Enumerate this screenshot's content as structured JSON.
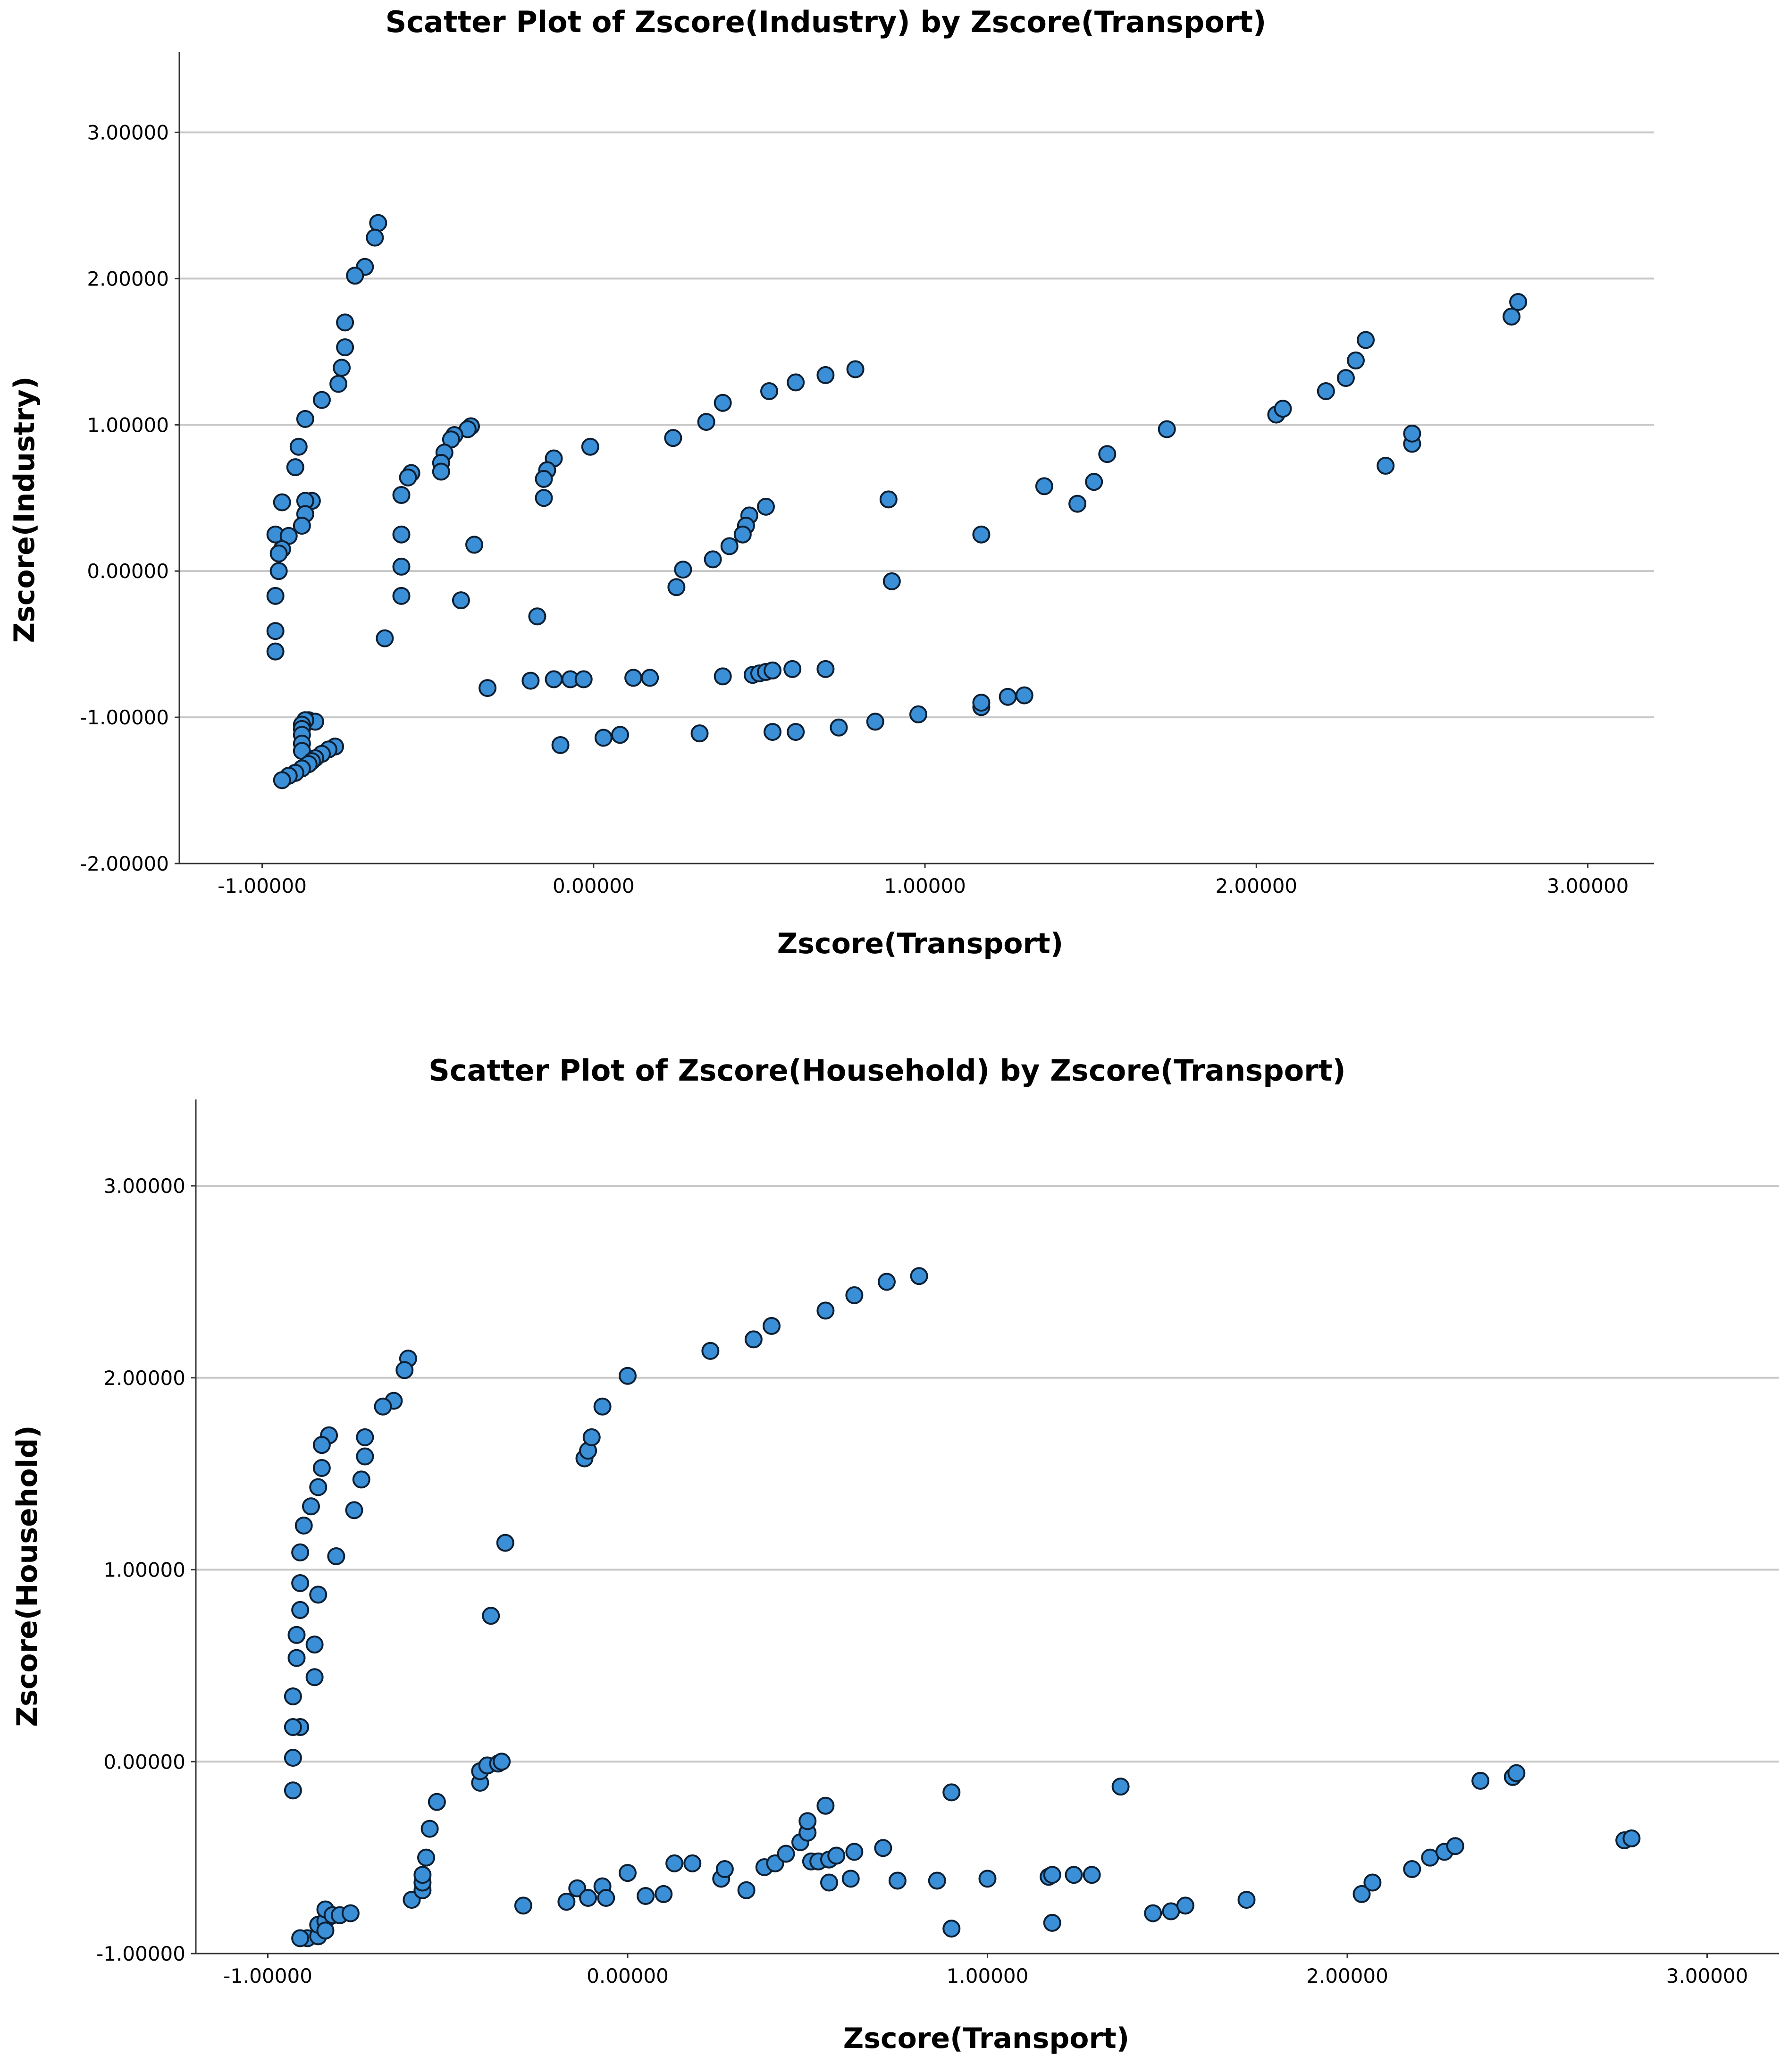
{
  "colors": {
    "point_fill": "#3a8fd6",
    "point_stroke": "#0d1f33",
    "grid": "#c8c8c8"
  },
  "chart_data": [
    {
      "type": "scatter",
      "title": "Scatter Plot of Zscore(Industry) by Zscore(Transport)",
      "xlabel": "Zscore(Transport)",
      "ylabel": "Zscore(Industry)",
      "xlim": [
        -1.25,
        3.2
      ],
      "ylim": [
        -2.0,
        3.55
      ],
      "xticks": [
        -1,
        0,
        1,
        2,
        3
      ],
      "xtick_labels": [
        "-1.00000",
        "0.00000",
        "1.00000",
        "2.00000",
        "3.00000"
      ],
      "yticks": [
        -2,
        -1,
        0,
        1,
        2,
        3
      ],
      "ytick_labels": [
        "-2.00000",
        "-1.00000",
        "0.00000",
        "1.00000",
        "2.00000",
        "3.00000"
      ],
      "grid_y": [
        -1,
        0,
        1,
        2,
        3
      ],
      "points": [
        [
          -0.65,
          2.38
        ],
        [
          -0.66,
          2.28
        ],
        [
          -0.69,
          2.08
        ],
        [
          -0.72,
          2.02
        ],
        [
          -0.75,
          1.7
        ],
        [
          -0.75,
          1.53
        ],
        [
          -0.76,
          1.39
        ],
        [
          -0.77,
          1.28
        ],
        [
          -0.82,
          1.17
        ],
        [
          -0.87,
          1.04
        ],
        [
          -0.89,
          0.85
        ],
        [
          -0.9,
          0.71
        ],
        [
          -0.85,
          0.48
        ],
        [
          -0.87,
          0.48
        ],
        [
          -0.94,
          0.47
        ],
        [
          -0.87,
          0.39
        ],
        [
          -0.88,
          0.31
        ],
        [
          -0.96,
          0.25
        ],
        [
          -0.92,
          0.24
        ],
        [
          -0.94,
          0.15
        ],
        [
          -0.95,
          0.12
        ],
        [
          -0.95,
          0.0
        ],
        [
          -0.96,
          -0.17
        ],
        [
          -0.96,
          -0.41
        ],
        [
          -0.96,
          -0.55
        ],
        [
          -0.86,
          -1.02
        ],
        [
          -0.84,
          -1.03
        ],
        [
          -0.87,
          -1.02
        ],
        [
          -0.88,
          -1.05
        ],
        [
          -0.88,
          -1.08
        ],
        [
          -0.88,
          -1.12
        ],
        [
          -0.88,
          -1.18
        ],
        [
          -0.88,
          -1.23
        ],
        [
          -0.78,
          -1.2
        ],
        [
          -0.8,
          -1.22
        ],
        [
          -0.82,
          -1.25
        ],
        [
          -0.84,
          -1.28
        ],
        [
          -0.85,
          -1.3
        ],
        [
          -0.86,
          -1.32
        ],
        [
          -0.88,
          -1.35
        ],
        [
          -0.9,
          -1.38
        ],
        [
          -0.92,
          -1.4
        ],
        [
          -0.94,
          -1.43
        ],
        [
          -0.37,
          0.99
        ],
        [
          -0.38,
          0.97
        ],
        [
          -0.42,
          0.93
        ],
        [
          -0.43,
          0.9
        ],
        [
          -0.45,
          0.81
        ],
        [
          -0.46,
          0.74
        ],
        [
          -0.46,
          0.68
        ],
        [
          -0.55,
          0.67
        ],
        [
          -0.56,
          0.64
        ],
        [
          -0.58,
          0.52
        ],
        [
          -0.58,
          0.25
        ],
        [
          -0.58,
          0.03
        ],
        [
          -0.58,
          -0.17
        ],
        [
          -0.63,
          -0.46
        ],
        [
          -0.36,
          0.18
        ],
        [
          -0.4,
          -0.2
        ],
        [
          -0.17,
          -0.31
        ],
        [
          -0.32,
          -0.8
        ],
        [
          -0.12,
          0.77
        ],
        [
          -0.14,
          0.69
        ],
        [
          -0.15,
          0.63
        ],
        [
          -0.15,
          0.5
        ],
        [
          -0.01,
          0.85
        ],
        [
          0.24,
          0.91
        ],
        [
          0.34,
          1.02
        ],
        [
          0.39,
          1.15
        ],
        [
          0.53,
          1.23
        ],
        [
          0.61,
          1.29
        ],
        [
          0.7,
          1.34
        ],
        [
          0.79,
          1.38
        ],
        [
          0.52,
          0.44
        ],
        [
          0.47,
          0.38
        ],
        [
          0.46,
          0.31
        ],
        [
          0.45,
          0.25
        ],
        [
          0.41,
          0.17
        ],
        [
          0.36,
          0.08
        ],
        [
          0.27,
          0.01
        ],
        [
          0.25,
          -0.11
        ],
        [
          0.89,
          0.49
        ],
        [
          0.9,
          -0.07
        ],
        [
          -0.19,
          -0.75
        ],
        [
          -0.12,
          -0.74
        ],
        [
          -0.07,
          -0.74
        ],
        [
          -0.03,
          -0.74
        ],
        [
          0.12,
          -0.73
        ],
        [
          0.17,
          -0.73
        ],
        [
          0.39,
          -0.72
        ],
        [
          0.48,
          -0.71
        ],
        [
          0.5,
          -0.7
        ],
        [
          0.52,
          -0.69
        ],
        [
          0.54,
          -0.68
        ],
        [
          0.6,
          -0.67
        ],
        [
          0.7,
          -0.67
        ],
        [
          -0.1,
          -1.19
        ],
        [
          0.03,
          -1.14
        ],
        [
          0.08,
          -1.12
        ],
        [
          0.32,
          -1.11
        ],
        [
          0.54,
          -1.1
        ],
        [
          0.61,
          -1.1
        ],
        [
          0.74,
          -1.07
        ],
        [
          0.85,
          -1.03
        ],
        [
          0.98,
          -0.98
        ],
        [
          1.17,
          -0.93
        ],
        [
          1.17,
          -0.9
        ],
        [
          1.25,
          -0.86
        ],
        [
          1.3,
          -0.85
        ],
        [
          1.17,
          0.25
        ],
        [
          1.36,
          0.58
        ],
        [
          1.46,
          0.46
        ],
        [
          1.51,
          0.61
        ],
        [
          1.55,
          0.8
        ],
        [
          1.73,
          0.97
        ],
        [
          2.06,
          1.07
        ],
        [
          2.08,
          1.11
        ],
        [
          2.21,
          1.23
        ],
        [
          2.27,
          1.32
        ],
        [
          2.3,
          1.44
        ],
        [
          2.33,
          1.58
        ],
        [
          2.39,
          0.72
        ],
        [
          2.47,
          0.87
        ],
        [
          2.47,
          0.94
        ],
        [
          2.77,
          1.74
        ],
        [
          2.79,
          1.84
        ]
      ]
    },
    {
      "type": "scatter",
      "title": "Scatter Plot of Zscore(Household) by Zscore(Transport)",
      "xlabel": "Zscore(Transport)",
      "ylabel": "Zscore(Household)",
      "xlim": [
        -1.2,
        3.2
      ],
      "ylim": [
        -1.0,
        3.45
      ],
      "xticks": [
        -1,
        0,
        1,
        2,
        3
      ],
      "xtick_labels": [
        "-1.00000",
        "0.00000",
        "1.00000",
        "2.00000",
        "3.00000"
      ],
      "yticks": [
        -1,
        0,
        1,
        2,
        3
      ],
      "ytick_labels": [
        "-1.00000",
        "0.00000",
        "1.00000",
        "2.00000",
        "3.00000"
      ],
      "grid_y": [
        0,
        1,
        2,
        3
      ],
      "points": [
        [
          -0.61,
          2.1
        ],
        [
          -0.62,
          2.04
        ],
        [
          -0.65,
          1.88
        ],
        [
          -0.68,
          1.85
        ],
        [
          -0.73,
          1.69
        ],
        [
          -0.73,
          1.59
        ],
        [
          -0.74,
          1.47
        ],
        [
          -0.76,
          1.31
        ],
        [
          -0.81,
          1.07
        ],
        [
          -0.83,
          1.7
        ],
        [
          -0.85,
          1.65
        ],
        [
          -0.85,
          1.53
        ],
        [
          -0.86,
          1.43
        ],
        [
          -0.88,
          1.33
        ],
        [
          -0.9,
          1.23
        ],
        [
          -0.91,
          1.09
        ],
        [
          -0.91,
          0.93
        ],
        [
          -0.91,
          0.79
        ],
        [
          -0.92,
          0.66
        ],
        [
          -0.92,
          0.54
        ],
        [
          -0.93,
          0.34
        ],
        [
          -0.91,
          0.18
        ],
        [
          -0.93,
          0.18
        ],
        [
          -0.93,
          0.02
        ],
        [
          -0.93,
          -0.15
        ],
        [
          -0.86,
          0.87
        ],
        [
          -0.87,
          0.61
        ],
        [
          -0.87,
          0.44
        ],
        [
          -0.89,
          -0.92
        ],
        [
          -0.91,
          -0.92
        ],
        [
          -0.86,
          -0.91
        ],
        [
          -0.86,
          -0.85
        ],
        [
          -0.84,
          -0.83
        ],
        [
          -0.84,
          -0.77
        ],
        [
          -0.82,
          -0.8
        ],
        [
          -0.8,
          -0.8
        ],
        [
          -0.77,
          -0.79
        ],
        [
          -0.84,
          -0.88
        ],
        [
          -0.6,
          -0.72
        ],
        [
          -0.57,
          -0.67
        ],
        [
          -0.57,
          -0.63
        ],
        [
          -0.57,
          -0.59
        ],
        [
          -0.56,
          -0.5
        ],
        [
          -0.55,
          -0.35
        ],
        [
          -0.53,
          -0.21
        ],
        [
          -0.41,
          -0.11
        ],
        [
          -0.41,
          -0.05
        ],
        [
          -0.39,
          -0.02
        ],
        [
          -0.36,
          -0.01
        ],
        [
          -0.35,
          0.0
        ],
        [
          -0.38,
          0.76
        ],
        [
          -0.34,
          1.14
        ],
        [
          -0.12,
          1.58
        ],
        [
          -0.11,
          1.62
        ],
        [
          -0.1,
          1.69
        ],
        [
          -0.07,
          1.85
        ],
        [
          0.0,
          2.01
        ],
        [
          0.23,
          2.14
        ],
        [
          0.35,
          2.2
        ],
        [
          0.4,
          2.27
        ],
        [
          0.55,
          2.35
        ],
        [
          0.63,
          2.43
        ],
        [
          0.72,
          2.5
        ],
        [
          0.81,
          2.53
        ],
        [
          -0.29,
          -0.75
        ],
        [
          -0.17,
          -0.73
        ],
        [
          -0.14,
          -0.66
        ],
        [
          -0.11,
          -0.71
        ],
        [
          -0.07,
          -0.65
        ],
        [
          -0.06,
          -0.71
        ],
        [
          0.0,
          -0.58
        ],
        [
          0.05,
          -0.7
        ],
        [
          0.1,
          -0.69
        ],
        [
          0.13,
          -0.53
        ],
        [
          0.18,
          -0.53
        ],
        [
          0.26,
          -0.61
        ],
        [
          0.27,
          -0.56
        ],
        [
          0.33,
          -0.67
        ],
        [
          0.38,
          -0.55
        ],
        [
          0.41,
          -0.53
        ],
        [
          0.44,
          -0.48
        ],
        [
          0.48,
          -0.42
        ],
        [
          0.5,
          -0.37
        ],
        [
          0.5,
          -0.31
        ],
        [
          0.55,
          -0.23
        ],
        [
          0.51,
          -0.52
        ],
        [
          0.53,
          -0.52
        ],
        [
          0.56,
          -0.51
        ],
        [
          0.58,
          -0.49
        ],
        [
          0.56,
          -0.63
        ],
        [
          0.62,
          -0.61
        ],
        [
          0.63,
          -0.47
        ],
        [
          0.71,
          -0.45
        ],
        [
          0.75,
          -0.62
        ],
        [
          0.86,
          -0.62
        ],
        [
          0.9,
          -0.87
        ],
        [
          0.9,
          -0.16
        ],
        [
          1.0,
          -0.61
        ],
        [
          1.17,
          -0.6
        ],
        [
          1.18,
          -0.59
        ],
        [
          1.18,
          -0.84
        ],
        [
          1.24,
          -0.59
        ],
        [
          1.29,
          -0.59
        ],
        [
          1.37,
          -0.13
        ],
        [
          1.46,
          -0.79
        ],
        [
          1.51,
          -0.78
        ],
        [
          1.55,
          -0.75
        ],
        [
          1.72,
          -0.72
        ],
        [
          2.04,
          -0.69
        ],
        [
          2.07,
          -0.63
        ],
        [
          2.18,
          -0.56
        ],
        [
          2.23,
          -0.5
        ],
        [
          2.27,
          -0.47
        ],
        [
          2.3,
          -0.44
        ],
        [
          2.37,
          -0.1
        ],
        [
          2.46,
          -0.08
        ],
        [
          2.47,
          -0.06
        ],
        [
          2.77,
          -0.41
        ],
        [
          2.79,
          -0.4
        ]
      ]
    }
  ]
}
